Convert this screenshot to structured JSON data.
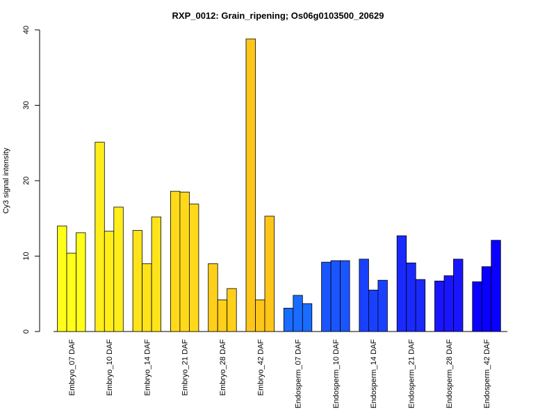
{
  "chart_data": {
    "type": "bar",
    "title": "RXP_0012: Grain_ripening; Os06g0103500_20629",
    "xlabel": "",
    "ylabel": "Cy3 signal intensity",
    "ylim": [
      0,
      40
    ],
    "yticks": [
      0,
      10,
      20,
      30,
      40
    ],
    "grid": false,
    "legend": "none",
    "categories": [
      "Embryo_07 DAF",
      "Embryo_10 DAF",
      "Embryo_14 DAF",
      "Embryo_21 DAF",
      "Embryo_28 DAF",
      "Embryo_42 DAF",
      "Endosperm_07 DAF",
      "Endosperm_10 DAF",
      "Endosperm_14 DAF",
      "Endosperm_21 DAF",
      "Endosperm_28 DAF",
      "Endosperm_42 DAF"
    ],
    "replicates_per_category": 3,
    "values": [
      [
        14.0,
        10.4,
        13.1
      ],
      [
        25.1,
        13.3,
        16.5
      ],
      [
        13.4,
        9.0,
        15.2
      ],
      [
        18.6,
        18.5,
        16.9
      ],
      [
        9.0,
        4.2,
        5.7
      ],
      [
        38.8,
        4.2,
        15.3
      ],
      [
        3.1,
        4.8,
        3.7
      ],
      [
        9.2,
        9.4,
        9.4
      ],
      [
        9.6,
        5.5,
        6.8
      ],
      [
        12.7,
        9.1,
        6.9
      ],
      [
        6.7,
        7.4,
        9.6
      ],
      [
        6.6,
        8.6,
        12.1
      ]
    ],
    "colors": [
      "#FFFF1A",
      "#FFEE1A",
      "#FFE31A",
      "#FFD91A",
      "#FFCF1A",
      "#FFC61A",
      "#1A6BFF",
      "#1A55FF",
      "#1A40FF",
      "#1A2AFF",
      "#1A15FF",
      "#0A00FF"
    ]
  }
}
